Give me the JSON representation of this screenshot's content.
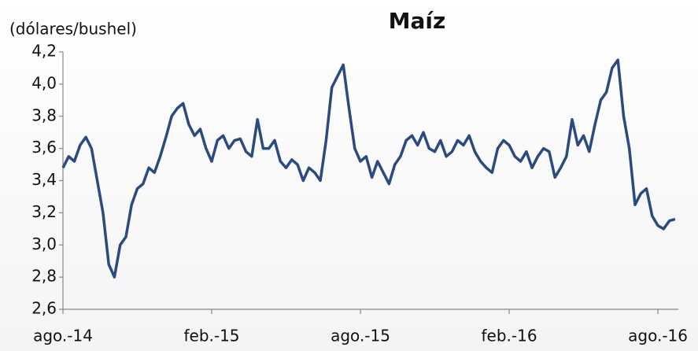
{
  "chart_data": {
    "type": "line",
    "title": "Maíz",
    "y_label": "(dólares/bushel)",
    "categories": [
      "ago.-14",
      null,
      null,
      null,
      null,
      null,
      null,
      null,
      null,
      null,
      null,
      null,
      null,
      null,
      null,
      null,
      null,
      null,
      null,
      null,
      null,
      null,
      null,
      null,
      null,
      null,
      "feb.-15",
      null,
      null,
      null,
      null,
      null,
      null,
      null,
      null,
      null,
      null,
      null,
      null,
      null,
      null,
      null,
      null,
      null,
      null,
      null,
      null,
      null,
      null,
      null,
      null,
      null,
      "ago.-15",
      null,
      null,
      null,
      null,
      null,
      null,
      null,
      null,
      null,
      null,
      null,
      null,
      null,
      null,
      null,
      null,
      null,
      null,
      null,
      null,
      null,
      null,
      null,
      null,
      null,
      "feb.-16",
      null,
      null,
      null,
      null,
      null,
      null,
      null,
      null,
      null,
      null,
      null,
      null,
      null,
      null,
      null,
      null,
      null,
      null,
      null,
      null,
      null,
      null,
      null,
      null,
      null,
      "ago.-16",
      null,
      null,
      null
    ],
    "series": [
      {
        "name": "Maíz",
        "color": "#2b4a7e",
        "values": [
          3.48,
          3.55,
          3.52,
          3.62,
          3.67,
          3.6,
          3.4,
          3.2,
          2.88,
          2.8,
          3.0,
          3.05,
          3.25,
          3.35,
          3.38,
          3.48,
          3.45,
          3.55,
          3.67,
          3.8,
          3.85,
          3.88,
          3.75,
          3.68,
          3.72,
          3.6,
          3.52,
          3.65,
          3.68,
          3.6,
          3.65,
          3.66,
          3.58,
          3.55,
          3.78,
          3.6,
          3.6,
          3.65,
          3.52,
          3.48,
          3.53,
          3.5,
          3.4,
          3.48,
          3.45,
          3.4,
          3.65,
          3.98,
          4.05,
          4.12,
          3.85,
          3.6,
          3.52,
          3.55,
          3.42,
          3.52,
          3.45,
          3.38,
          3.5,
          3.55,
          3.65,
          3.68,
          3.62,
          3.7,
          3.6,
          3.58,
          3.65,
          3.55,
          3.58,
          3.65,
          3.62,
          3.68,
          3.58,
          3.52,
          3.48,
          3.45,
          3.6,
          3.65,
          3.62,
          3.55,
          3.52,
          3.58,
          3.48,
          3.55,
          3.6,
          3.58,
          3.42,
          3.48,
          3.55,
          3.78,
          3.62,
          3.68,
          3.58,
          3.75,
          3.9,
          3.95,
          4.1,
          4.15,
          3.8,
          3.6,
          3.25,
          3.32,
          3.35,
          3.18,
          3.12,
          3.1,
          3.15,
          3.16
        ]
      }
    ],
    "ylim": [
      2.6,
      4.2
    ],
    "yticks": [
      {
        "value": 2.6,
        "label": "2,6"
      },
      {
        "value": 2.8,
        "label": "2,8"
      },
      {
        "value": 3.0,
        "label": "3,0"
      },
      {
        "value": 3.2,
        "label": "3,2"
      },
      {
        "value": 3.4,
        "label": "3,4"
      },
      {
        "value": 3.6,
        "label": "3,6"
      },
      {
        "value": 3.8,
        "label": "3,8"
      },
      {
        "value": 4.0,
        "label": "4,0"
      },
      {
        "value": 4.2,
        "label": "4,2"
      }
    ],
    "grid": false
  }
}
